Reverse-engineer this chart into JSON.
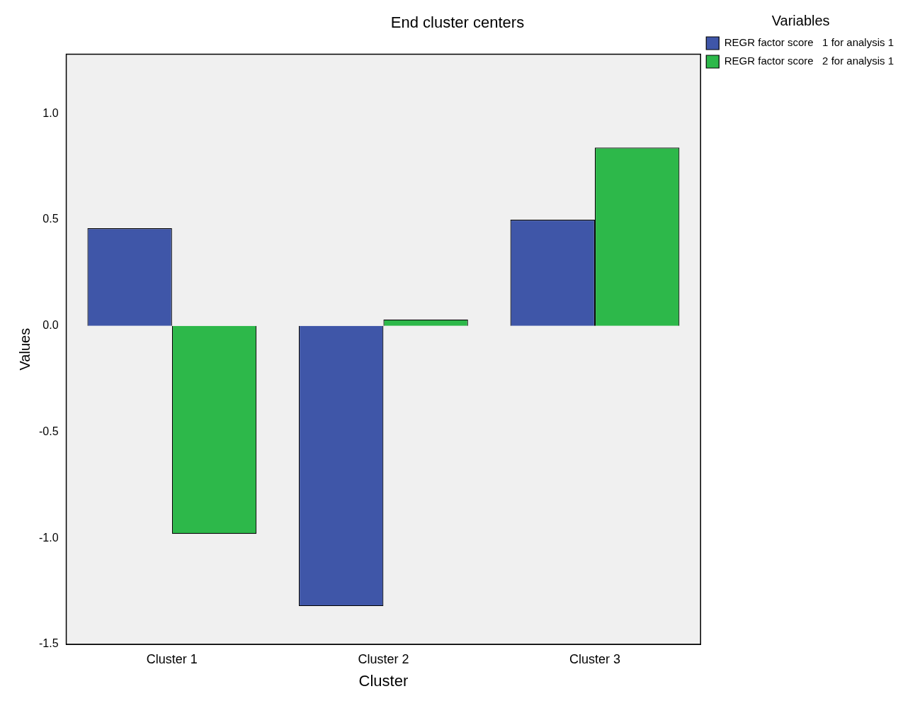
{
  "chart_data": {
    "type": "bar",
    "title": "End cluster centers",
    "xlabel": "Cluster",
    "ylabel": "Values",
    "legend_title": "Variables",
    "categories": [
      "Cluster 1",
      "Cluster 2",
      "Cluster 3"
    ],
    "series": [
      {
        "name": "REGR factor score   1 for analysis 1",
        "color": "#3f56a8",
        "values": [
          0.46,
          -1.32,
          0.5
        ]
      },
      {
        "name": "REGR factor score   2 for analysis 1",
        "color": "#2db84a",
        "values": [
          -0.98,
          0.03,
          0.84
        ]
      }
    ],
    "ylim": [
      -1.5,
      1.28
    ],
    "yticks": [
      {
        "value": -1.5,
        "label": "-1.5"
      },
      {
        "value": -1,
        "label": "-1.0"
      },
      {
        "value": -0.5,
        "label": "-0.5"
      },
      {
        "value": 0,
        "label": "0.0"
      },
      {
        "value": 0.5,
        "label": "0.5"
      },
      {
        "value": 1,
        "label": "1.0"
      }
    ],
    "grid": false,
    "legend": "top right"
  }
}
